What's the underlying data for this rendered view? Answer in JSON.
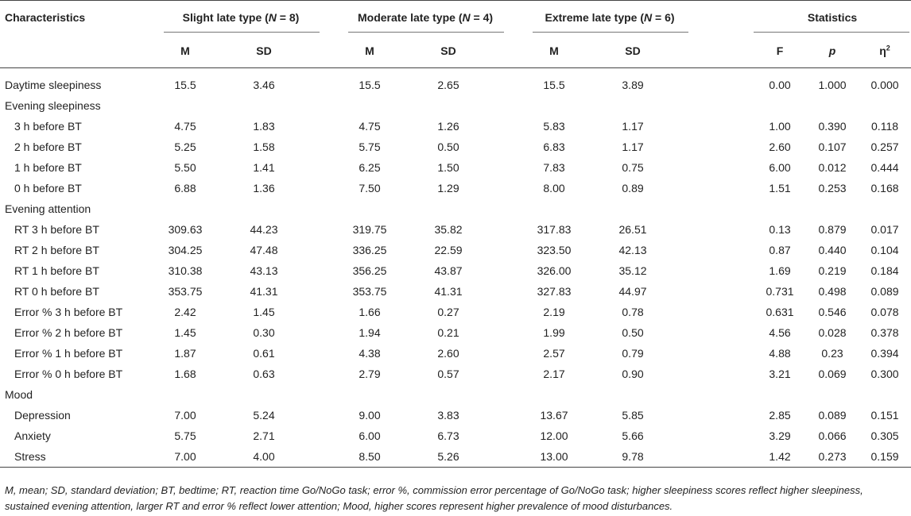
{
  "header": {
    "characteristics": "Characteristics",
    "groups": [
      {
        "label_pre": "Slight late type (",
        "label_n": "N",
        "label_post": " = 8)"
      },
      {
        "label_pre": "Moderate late type (",
        "label_n": "N",
        "label_post": " = 4)"
      },
      {
        "label_pre": "Extreme late type (",
        "label_n": "N",
        "label_post": " = 6)"
      }
    ],
    "statistics": "Statistics",
    "sub": {
      "m": "M",
      "sd": "SD",
      "f": "F",
      "p": "p",
      "eta": "η",
      "eta_sup": "2"
    }
  },
  "rows": [
    {
      "label": "Daytime sleepiness",
      "type": "row",
      "vals": [
        "15.5",
        "3.46",
        "15.5",
        "2.65",
        "15.5",
        "3.89",
        "0.00",
        "1.000",
        "0.000"
      ]
    },
    {
      "label": "Evening sleepiness",
      "type": "section"
    },
    {
      "label": "3 h before BT",
      "type": "sub",
      "vals": [
        "4.75",
        "1.83",
        "4.75",
        "1.26",
        "5.83",
        "1.17",
        "1.00",
        "0.390",
        "0.118"
      ]
    },
    {
      "label": "2 h before BT",
      "type": "sub",
      "vals": [
        "5.25",
        "1.58",
        "5.75",
        "0.50",
        "6.83",
        "1.17",
        "2.60",
        "0.107",
        "0.257"
      ]
    },
    {
      "label": "1 h before BT",
      "type": "sub",
      "vals": [
        "5.50",
        "1.41",
        "6.25",
        "1.50",
        "7.83",
        "0.75",
        "6.00",
        "0.012",
        "0.444"
      ]
    },
    {
      "label": "0 h before BT",
      "type": "sub",
      "vals": [
        "6.88",
        "1.36",
        "7.50",
        "1.29",
        "8.00",
        "0.89",
        "1.51",
        "0.253",
        "0.168"
      ]
    },
    {
      "label": "Evening attention",
      "type": "section"
    },
    {
      "label": "RT 3 h before BT",
      "type": "sub",
      "vals": [
        "309.63",
        "44.23",
        "319.75",
        "35.82",
        "317.83",
        "26.51",
        "0.13",
        "0.879",
        "0.017"
      ]
    },
    {
      "label": "RT 2 h before BT",
      "type": "sub",
      "vals": [
        "304.25",
        "47.48",
        "336.25",
        "22.59",
        "323.50",
        "42.13",
        "0.87",
        "0.440",
        "0.104"
      ]
    },
    {
      "label": "RT 1 h before BT",
      "type": "sub",
      "vals": [
        "310.38",
        "43.13",
        "356.25",
        "43.87",
        "326.00",
        "35.12",
        "1.69",
        "0.219",
        "0.184"
      ]
    },
    {
      "label": "RT 0 h before BT",
      "type": "sub",
      "vals": [
        "353.75",
        "41.31",
        "353.75",
        "41.31",
        "327.83",
        "44.97",
        "0.731",
        "0.498",
        "0.089"
      ]
    },
    {
      "label": "Error % 3 h before BT",
      "type": "sub",
      "vals": [
        "2.42",
        "1.45",
        "1.66",
        "0.27",
        "2.19",
        "0.78",
        "0.631",
        "0.546",
        "0.078"
      ]
    },
    {
      "label": "Error % 2 h before BT",
      "type": "sub",
      "vals": [
        "1.45",
        "0.30",
        "1.94",
        "0.21",
        "1.99",
        "0.50",
        "4.56",
        "0.028",
        "0.378"
      ]
    },
    {
      "label": "Error % 1 h before BT",
      "type": "sub",
      "vals": [
        "1.87",
        "0.61",
        "4.38",
        "2.60",
        "2.57",
        "0.79",
        "4.88",
        "0.23",
        "0.394"
      ]
    },
    {
      "label": "Error % 0 h before BT",
      "type": "sub",
      "vals": [
        "1.68",
        "0.63",
        "2.79",
        "0.57",
        "2.17",
        "0.90",
        "3.21",
        "0.069",
        "0.300"
      ]
    },
    {
      "label": "Mood",
      "type": "section"
    },
    {
      "label": "Depression",
      "type": "sub",
      "vals": [
        "7.00",
        "5.24",
        "9.00",
        "3.83",
        "13.67",
        "5.85",
        "2.85",
        "0.089",
        "0.151"
      ]
    },
    {
      "label": "Anxiety",
      "type": "sub",
      "vals": [
        "5.75",
        "2.71",
        "6.00",
        "6.73",
        "12.00",
        "5.66",
        "3.29",
        "0.066",
        "0.305"
      ]
    },
    {
      "label": "Stress",
      "type": "sub",
      "vals": [
        "7.00",
        "4.00",
        "8.50",
        "5.26",
        "13.00",
        "9.78",
        "1.42",
        "0.273",
        "0.159"
      ]
    }
  ],
  "footnote": "M, mean; SD, standard deviation; BT, bedtime; RT, reaction time Go/NoGo task; error %, commission error percentage of Go/NoGo task; higher sleepiness scores reflect higher sleepiness, sustained evening attention, larger RT and error % reflect lower attention; Mood, higher scores represent higher prevalence of mood disturbances."
}
